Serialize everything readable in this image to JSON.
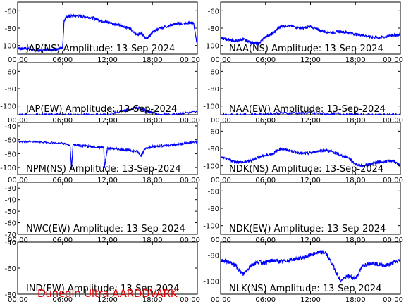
{
  "footer": {
    "text": "Dunedin Ultra AARDDVARK"
  },
  "colors": {
    "trace": "#0000ff",
    "axis": "#000000",
    "footer": "#e00000"
  },
  "chart_data": [
    {
      "type": "line",
      "title": "JAP(NS) Amplitude: 13-Sep-2024",
      "x_ticks": [
        "00:00",
        "06:00",
        "12:00",
        "18:00",
        "00:00"
      ],
      "xlim": [
        0,
        24
      ],
      "y_ticks": [
        "-60",
        "-80",
        "-100"
      ],
      "ylim": [
        -110,
        -50
      ],
      "series": [
        {
          "x": [
            0,
            0.5,
            1,
            2,
            3,
            4,
            5,
            5.5,
            6,
            6.2,
            6.5,
            7,
            8,
            9,
            10,
            11,
            12,
            13,
            14,
            15,
            16,
            16.5,
            17,
            17.5,
            18,
            19,
            20,
            21,
            22,
            23,
            23.5,
            24
          ],
          "y": [
            -103,
            -104,
            -103,
            -105,
            -106,
            -104,
            -105,
            -104,
            -103,
            -72,
            -67,
            -66,
            -66,
            -67,
            -68,
            -71,
            -73,
            -75,
            -78,
            -80,
            -88,
            -86,
            -91,
            -90,
            -85,
            -80,
            -78,
            -75,
            -75,
            -74,
            -74,
            -100
          ]
        }
      ]
    },
    {
      "type": "line",
      "title": "NAA(NS) Amplitude: 13-Sep-2024",
      "x_ticks": [
        "00:00",
        "06:00",
        "12:00",
        "18:00",
        "00:00"
      ],
      "xlim": [
        0,
        24
      ],
      "y_ticks": [
        "-60",
        "-80",
        "-100"
      ],
      "ylim": [
        -110,
        -50
      ],
      "series": [
        {
          "x": [
            0,
            1,
            2,
            3,
            4,
            5,
            6,
            6.5,
            7,
            8,
            9,
            10,
            11,
            12,
            13,
            14,
            15,
            16,
            17,
            18,
            19,
            20,
            21,
            22,
            23,
            24
          ],
          "y": [
            -92,
            -93,
            -95,
            -93,
            -96,
            -98,
            -90,
            -88,
            -86,
            -78,
            -77,
            -79,
            -80,
            -78,
            -82,
            -84,
            -85,
            -84,
            -85,
            -87,
            -88,
            -90,
            -91,
            -90,
            -88,
            -88
          ]
        }
      ]
    },
    {
      "type": "line",
      "title": "JAP(EW) Amplitude: 13-Sep-2024",
      "x_ticks": [
        "00:00",
        "06:00",
        "12:00",
        "18:00",
        "00:00"
      ],
      "xlim": [
        0,
        24
      ],
      "y_ticks": [
        "-60",
        "-80",
        "-100"
      ],
      "ylim": [
        -110,
        -50
      ],
      "series": [
        {
          "x": [
            0,
            2,
            4,
            6,
            8,
            10,
            12,
            14,
            15,
            16,
            17,
            18,
            19,
            20,
            22,
            24
          ],
          "y": [
            -110,
            -110,
            -110,
            -110,
            -110,
            -110,
            -110,
            -106,
            -104,
            -102,
            -105,
            -108,
            -110,
            -110,
            -108,
            -107
          ]
        }
      ]
    },
    {
      "type": "line",
      "title": "NAA(EW) Amplitude: 13-Sep-2024",
      "x_ticks": [
        "00:00",
        "06:00",
        "12:00",
        "18:00",
        "00:00"
      ],
      "xlim": [
        0,
        24
      ],
      "y_ticks": [
        "-60",
        "-80",
        "-100"
      ],
      "ylim": [
        -110,
        -50
      ],
      "series": [
        {
          "x": [
            0,
            2,
            4,
            6,
            8,
            10,
            12,
            14,
            16,
            18,
            20,
            22,
            24
          ],
          "y": [
            -110,
            -110,
            -110,
            -109,
            -108,
            -108,
            -108,
            -109,
            -109,
            -110,
            -110,
            -110,
            -110
          ]
        }
      ]
    },
    {
      "type": "line",
      "title": "NPM(NS) Amplitude: 13-Sep-2024",
      "x_ticks": [
        "00:00",
        "06:00",
        "12:00",
        "18:00",
        "00:00"
      ],
      "xlim": [
        0,
        24
      ],
      "y_ticks": [
        "-40",
        "-60",
        "-80",
        "-100"
      ],
      "ylim": [
        -110,
        -35
      ],
      "series": [
        {
          "x": [
            0,
            2,
            4,
            6,
            7,
            7.2,
            7.4,
            8,
            9,
            10,
            11,
            11.5,
            11.6,
            12,
            13,
            14,
            15,
            16,
            16.5,
            17,
            18,
            19,
            20,
            21,
            22,
            23,
            24
          ],
          "y": [
            -63,
            -63,
            -64,
            -65,
            -68,
            -102,
            -67,
            -68,
            -69,
            -70,
            -71,
            -71,
            -100,
            -72,
            -73,
            -74,
            -75,
            -77,
            -83,
            -73,
            -70,
            -69,
            -68,
            -67,
            -66,
            -64,
            -63
          ]
        }
      ]
    },
    {
      "type": "line",
      "title": "NDK(NS) Amplitude: 13-Sep-2024",
      "x_ticks": [
        "00:00",
        "06:00",
        "12:00",
        "18:00",
        "00:00"
      ],
      "xlim": [
        0,
        24
      ],
      "y_ticks": [
        "-60",
        "-80",
        "-100"
      ],
      "ylim": [
        -110,
        -50
      ],
      "series": [
        {
          "x": [
            0,
            1,
            2,
            3,
            4,
            5,
            6,
            7,
            8,
            9,
            10,
            11,
            12,
            13,
            14,
            15,
            16,
            17,
            18,
            19,
            20,
            21,
            22,
            23,
            24
          ],
          "y": [
            -90,
            -93,
            -95,
            -96,
            -94,
            -90,
            -88,
            -86,
            -80,
            -82,
            -84,
            -86,
            -85,
            -83,
            -82,
            -84,
            -88,
            -90,
            -98,
            -100,
            -98,
            -96,
            -95,
            -94,
            -100
          ]
        }
      ]
    },
    {
      "type": "line",
      "title": "NWC(EW) Amplitude: 13-Sep-2024",
      "x_ticks": [
        "00:00",
        "06:00",
        "12:00",
        "18:00",
        "00:00"
      ],
      "xlim": [
        0,
        24
      ],
      "y_ticks": [
        "-30",
        "-40",
        "-50",
        "-60",
        "-70"
      ],
      "ylim": [
        -70,
        -25
      ],
      "series": []
    },
    {
      "type": "line",
      "title": "NDK(EW) Amplitude: 13-Sep-2024",
      "x_ticks": [
        "00:00",
        "06:00",
        "12:00",
        "18:00",
        "00:00"
      ],
      "xlim": [
        0,
        24
      ],
      "y_ticks": [
        "-60",
        "-80",
        "-100"
      ],
      "ylim": [
        -110,
        -50
      ],
      "series": []
    },
    {
      "type": "line",
      "title": "IND(EW) Amplitude: 13-Sep-2024",
      "x_ticks": [
        "00:00",
        "06:00",
        "12:00",
        "18:00",
        "00:00"
      ],
      "xlim": [
        0,
        24
      ],
      "y_ticks": [
        "-40",
        "-60",
        "-80"
      ],
      "ylim": [
        -80,
        -40
      ],
      "series": []
    },
    {
      "type": "line",
      "title": "NLK(NS) Amplitude: 13-Sep-2024",
      "x_ticks": [
        "00:00",
        "06:00",
        "12:00",
        "18:00",
        "00:00"
      ],
      "xlim": [
        0,
        24
      ],
      "y_ticks": [
        "-80",
        "-100"
      ],
      "ylim": [
        -110,
        -70
      ],
      "series": [
        {
          "x": [
            0,
            1,
            2,
            3,
            4,
            5,
            6,
            7,
            8,
            9,
            10,
            11,
            12,
            13,
            14,
            15,
            16,
            17,
            18,
            19,
            20,
            21,
            22,
            23,
            24
          ],
          "y": [
            -84,
            -85,
            -88,
            -95,
            -88,
            -85,
            -86,
            -84,
            -85,
            -84,
            -83,
            -82,
            -80,
            -78,
            -78,
            -88,
            -100,
            -96,
            -98,
            -88,
            -86,
            -87,
            -88,
            -86,
            -84
          ]
        }
      ]
    }
  ]
}
